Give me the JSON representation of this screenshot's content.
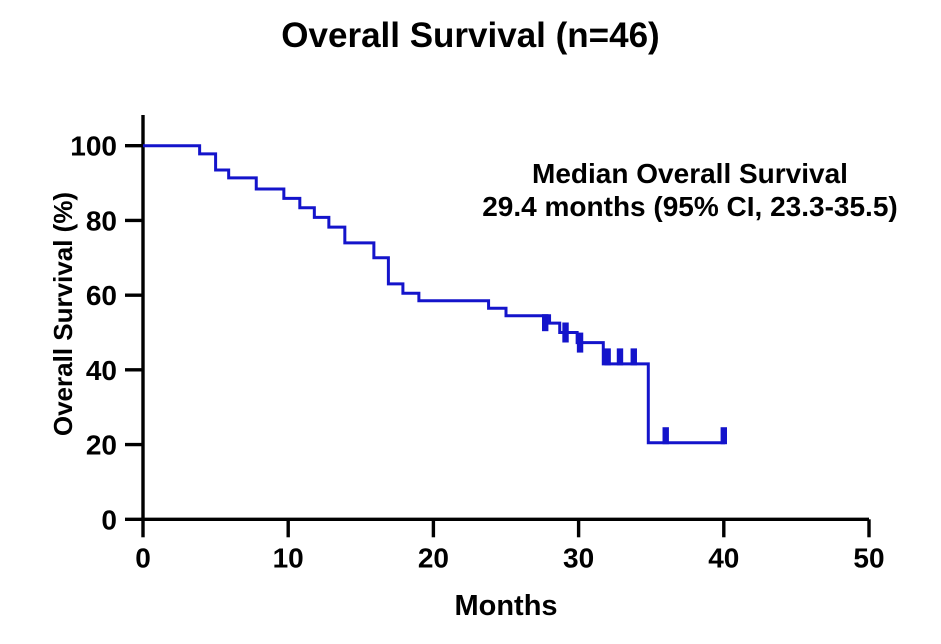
{
  "title": "Overall Survival (n=46)",
  "annotation": {
    "line1": "Median Overall Survival",
    "line2": "29.4 months (95% CI, 23.3-35.5)"
  },
  "colors": {
    "curve": "#1414cb",
    "axis": "#000000",
    "text": "#000000",
    "background": "#ffffff"
  },
  "chart_data": {
    "type": "line",
    "subtype": "kaplan-meier-step",
    "title": "Overall Survival (n=46)",
    "xlabel": "Months",
    "ylabel": "Overall Survival (%)",
    "xlim": [
      0,
      50
    ],
    "ylim": [
      0,
      100
    ],
    "xticks": [
      0,
      10,
      20,
      30,
      40,
      50
    ],
    "yticks": [
      0,
      20,
      40,
      60,
      80,
      100
    ],
    "grid": false,
    "legend": null,
    "annotation_text": [
      "Median Overall Survival",
      "29.4 months (95% CI, 23.3-35.5)"
    ],
    "median_survival_months": 29.4,
    "ci95": [
      23.3,
      35.5
    ],
    "n": 46,
    "series": [
      {
        "name": "Overall Survival",
        "color": "#1414cb",
        "steps": [
          [
            0,
            100
          ],
          [
            3.9,
            97.8
          ],
          [
            5.0,
            93.5
          ],
          [
            5.9,
            91.4
          ],
          [
            7.8,
            88.4
          ],
          [
            9.7,
            85.9
          ],
          [
            10.8,
            83.4
          ],
          [
            11.8,
            80.8
          ],
          [
            12.8,
            78.2
          ],
          [
            13.9,
            74.0
          ],
          [
            15.9,
            70.0
          ],
          [
            16.9,
            63.0
          ],
          [
            17.9,
            60.5
          ],
          [
            19.0,
            58.5
          ],
          [
            23.8,
            56.5
          ],
          [
            25.0,
            54.5
          ],
          [
            28.0,
            52.5
          ],
          [
            28.7,
            50.0
          ],
          [
            29.9,
            47.3
          ],
          [
            31.7,
            41.6
          ],
          [
            34.8,
            20.5
          ]
        ],
        "end_time": 40.1,
        "censor_ticks": [
          {
            "t": 27.7,
            "dir": "down"
          },
          {
            "t": 29.1,
            "dir": "cross"
          },
          {
            "t": 30.1,
            "dir": "cross"
          },
          {
            "t": 32.0,
            "dir": "up"
          },
          {
            "t": 32.85,
            "dir": "up"
          },
          {
            "t": 33.8,
            "dir": "up"
          },
          {
            "t": 36.0,
            "dir": "up"
          },
          {
            "t": 40.0,
            "dir": "up"
          }
        ]
      }
    ]
  }
}
